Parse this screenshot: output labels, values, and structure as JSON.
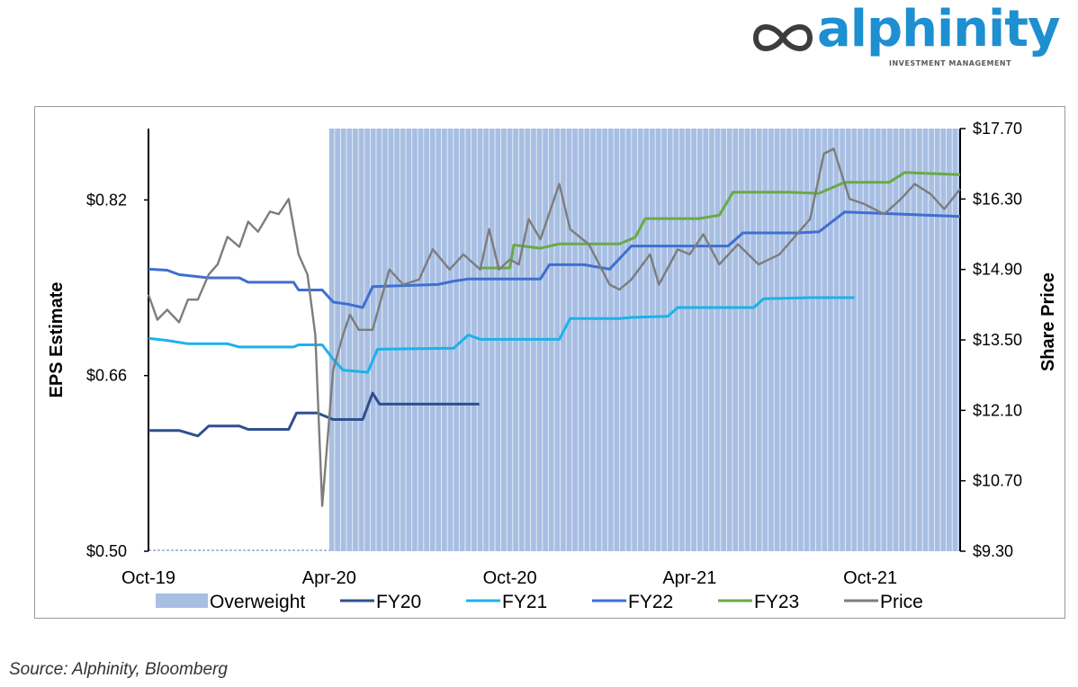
{
  "brand": {
    "name": "alphinity",
    "tagline": "INVESTMENT MANAGEMENT"
  },
  "source": "Source:  Alphinity, Bloomberg",
  "colors": {
    "overweight": "#a8bfe3",
    "FY20": "#2f4f8f",
    "FY21": "#1cb2ea",
    "FY22": "#3f6fd0",
    "FY23": "#6aaa45",
    "Price": "#7d7d7d",
    "brand": "#1e8fd0"
  },
  "chart_data": {
    "type": "line",
    "title": "",
    "x_type": "date",
    "x_range": [
      "2019-10-01",
      "2021-12-31"
    ],
    "x_ticks": [
      {
        "date": "2019-10-01",
        "label": "Oct-19"
      },
      {
        "date": "2020-04-01",
        "label": "Apr-20"
      },
      {
        "date": "2020-10-01",
        "label": "Oct-20"
      },
      {
        "date": "2021-04-01",
        "label": "Apr-21"
      },
      {
        "date": "2021-10-01",
        "label": "Oct-21"
      }
    ],
    "y_left": {
      "label": "EPS Estimate",
      "range": [
        0.5,
        0.885
      ],
      "ticks": [
        0.5,
        0.66,
        0.82
      ],
      "tick_labels": [
        "$0.50",
        "$0.66",
        "$0.82"
      ]
    },
    "y_right": {
      "label": "Share Price",
      "range": [
        9.3,
        17.7
      ],
      "ticks": [
        9.3,
        10.7,
        12.1,
        13.5,
        14.9,
        16.3,
        17.7
      ],
      "tick_labels": [
        "$9.30",
        "$10.70",
        "$12.10",
        "$13.50",
        "$14.90",
        "$16.30",
        "$17.70"
      ]
    },
    "overweight_period": {
      "start": "2020-04-01",
      "end": "2021-12-31",
      "name": "Overweight"
    },
    "legend_position": "bottom",
    "legend": [
      "Overweight",
      "FY20",
      "FY21",
      "FY22",
      "FY23",
      "Price"
    ],
    "series": [
      {
        "name": "FY20",
        "axis": "left",
        "points": [
          [
            "2019-10-01",
            0.61
          ],
          [
            "2019-11-01",
            0.61
          ],
          [
            "2019-11-20",
            0.605
          ],
          [
            "2019-12-01",
            0.614
          ],
          [
            "2020-01-01",
            0.614
          ],
          [
            "2020-01-10",
            0.611
          ],
          [
            "2020-02-20",
            0.611
          ],
          [
            "2020-02-28",
            0.626
          ],
          [
            "2020-03-20",
            0.626
          ],
          [
            "2020-04-05",
            0.62
          ],
          [
            "2020-05-05",
            0.62
          ],
          [
            "2020-05-15",
            0.644
          ],
          [
            "2020-05-22",
            0.634
          ],
          [
            "2020-08-31",
            0.634
          ]
        ]
      },
      {
        "name": "FY21",
        "axis": "left",
        "points": [
          [
            "2019-10-01",
            0.694
          ],
          [
            "2019-10-20",
            0.692
          ],
          [
            "2019-11-10",
            0.689
          ],
          [
            "2019-12-20",
            0.689
          ],
          [
            "2020-01-01",
            0.686
          ],
          [
            "2020-02-25",
            0.686
          ],
          [
            "2020-03-01",
            0.688
          ],
          [
            "2020-03-25",
            0.688
          ],
          [
            "2020-04-05",
            0.675
          ],
          [
            "2020-04-15",
            0.665
          ],
          [
            "2020-05-10",
            0.663
          ],
          [
            "2020-05-20",
            0.684
          ],
          [
            "2020-08-05",
            0.685
          ],
          [
            "2020-08-20",
            0.697
          ],
          [
            "2020-09-01",
            0.693
          ],
          [
            "2020-11-20",
            0.693
          ],
          [
            "2020-12-01",
            0.712
          ],
          [
            "2021-01-20",
            0.712
          ],
          [
            "2021-02-01",
            0.713
          ],
          [
            "2021-03-10",
            0.714
          ],
          [
            "2021-03-20",
            0.722
          ],
          [
            "2021-06-05",
            0.722
          ],
          [
            "2021-06-15",
            0.73
          ],
          [
            "2021-08-01",
            0.731
          ],
          [
            "2021-09-15",
            0.731
          ]
        ]
      },
      {
        "name": "FY22",
        "axis": "left",
        "points": [
          [
            "2019-10-01",
            0.757
          ],
          [
            "2019-10-20",
            0.756
          ],
          [
            "2019-11-01",
            0.752
          ],
          [
            "2019-12-01",
            0.749
          ],
          [
            "2020-01-01",
            0.749
          ],
          [
            "2020-01-10",
            0.745
          ],
          [
            "2020-02-25",
            0.745
          ],
          [
            "2020-03-01",
            0.738
          ],
          [
            "2020-03-25",
            0.738
          ],
          [
            "2020-04-05",
            0.727
          ],
          [
            "2020-04-20",
            0.725
          ],
          [
            "2020-05-05",
            0.722
          ],
          [
            "2020-05-15",
            0.741
          ],
          [
            "2020-07-20",
            0.743
          ],
          [
            "2020-08-05",
            0.746
          ],
          [
            "2020-08-20",
            0.748
          ],
          [
            "2020-11-01",
            0.748
          ],
          [
            "2020-11-10",
            0.761
          ],
          [
            "2020-12-15",
            0.761
          ],
          [
            "2021-01-10",
            0.757
          ],
          [
            "2021-02-01",
            0.778
          ],
          [
            "2021-05-10",
            0.778
          ],
          [
            "2021-05-25",
            0.79
          ],
          [
            "2021-07-20",
            0.79
          ],
          [
            "2021-08-10",
            0.791
          ],
          [
            "2021-09-05",
            0.809
          ],
          [
            "2021-12-31",
            0.805
          ]
        ]
      },
      {
        "name": "FY23",
        "axis": "left",
        "points": [
          [
            "2020-09-01",
            0.758
          ],
          [
            "2020-10-01",
            0.758
          ],
          [
            "2020-10-05",
            0.779
          ],
          [
            "2020-11-01",
            0.776
          ],
          [
            "2020-11-20",
            0.78
          ],
          [
            "2021-01-20",
            0.78
          ],
          [
            "2021-02-05",
            0.786
          ],
          [
            "2021-02-15",
            0.803
          ],
          [
            "2021-04-10",
            0.803
          ],
          [
            "2021-05-01",
            0.806
          ],
          [
            "2021-05-15",
            0.827
          ],
          [
            "2021-07-10",
            0.827
          ],
          [
            "2021-08-10",
            0.826
          ],
          [
            "2021-09-05",
            0.836
          ],
          [
            "2021-10-20",
            0.836
          ],
          [
            "2021-11-05",
            0.845
          ],
          [
            "2021-12-31",
            0.843
          ]
        ]
      },
      {
        "name": "Price",
        "axis": "right",
        "points": [
          [
            "2019-10-01",
            14.4
          ],
          [
            "2019-10-10",
            13.9
          ],
          [
            "2019-10-20",
            14.1
          ],
          [
            "2019-11-01",
            13.85
          ],
          [
            "2019-11-10",
            14.3
          ],
          [
            "2019-11-20",
            14.3
          ],
          [
            "2019-12-01",
            14.8
          ],
          [
            "2019-12-10",
            15.0
          ],
          [
            "2019-12-20",
            15.55
          ],
          [
            "2020-01-01",
            15.35
          ],
          [
            "2020-01-10",
            15.85
          ],
          [
            "2020-01-20",
            15.65
          ],
          [
            "2020-02-01",
            16.05
          ],
          [
            "2020-02-10",
            16.0
          ],
          [
            "2020-02-20",
            16.3
          ],
          [
            "2020-03-01",
            15.2
          ],
          [
            "2020-03-10",
            14.8
          ],
          [
            "2020-03-18",
            13.6
          ],
          [
            "2020-03-25",
            10.2
          ],
          [
            "2020-04-05",
            12.9
          ],
          [
            "2020-04-15",
            13.6
          ],
          [
            "2020-04-22",
            14.0
          ],
          [
            "2020-05-01",
            13.7
          ],
          [
            "2020-05-15",
            13.7
          ],
          [
            "2020-06-01",
            14.9
          ],
          [
            "2020-06-15",
            14.6
          ],
          [
            "2020-07-01",
            14.7
          ],
          [
            "2020-07-15",
            15.3
          ],
          [
            "2020-08-01",
            14.9
          ],
          [
            "2020-08-15",
            15.2
          ],
          [
            "2020-09-01",
            14.9
          ],
          [
            "2020-09-10",
            15.7
          ],
          [
            "2020-09-20",
            14.9
          ],
          [
            "2020-10-01",
            15.1
          ],
          [
            "2020-10-10",
            15.0
          ],
          [
            "2020-10-20",
            15.9
          ],
          [
            "2020-11-01",
            15.5
          ],
          [
            "2020-11-20",
            16.6
          ],
          [
            "2020-12-01",
            15.7
          ],
          [
            "2020-12-20",
            15.4
          ],
          [
            "2021-01-10",
            14.6
          ],
          [
            "2021-01-20",
            14.5
          ],
          [
            "2021-02-01",
            14.7
          ],
          [
            "2021-02-20",
            15.2
          ],
          [
            "2021-03-01",
            14.6
          ],
          [
            "2021-03-20",
            15.3
          ],
          [
            "2021-04-01",
            15.2
          ],
          [
            "2021-04-15",
            15.6
          ],
          [
            "2021-05-01",
            15.0
          ],
          [
            "2021-05-20",
            15.4
          ],
          [
            "2021-06-10",
            15.0
          ],
          [
            "2021-07-01",
            15.2
          ],
          [
            "2021-08-01",
            15.9
          ],
          [
            "2021-08-15",
            17.2
          ],
          [
            "2021-08-25",
            17.3
          ],
          [
            "2021-09-10",
            16.3
          ],
          [
            "2021-09-25",
            16.2
          ],
          [
            "2021-10-15",
            16.0
          ],
          [
            "2021-11-01",
            16.3
          ],
          [
            "2021-11-15",
            16.6
          ],
          [
            "2021-12-01",
            16.4
          ],
          [
            "2021-12-15",
            16.1
          ],
          [
            "2021-12-31",
            16.5
          ]
        ]
      }
    ]
  }
}
